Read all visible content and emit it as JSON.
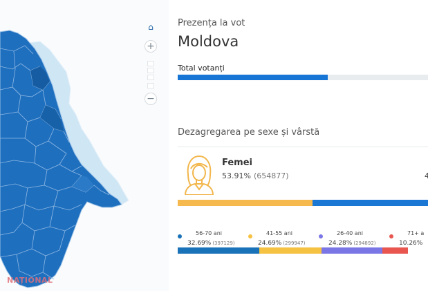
{
  "panel": {
    "section_label": "Prezența la vot",
    "country": "Moldova",
    "total_label": "Total votanți",
    "total_progress": 0.6,
    "breakdown_title": "Dezagregarea pe sexe și vârstă"
  },
  "female": {
    "label": "Femei",
    "percent": "53.91%",
    "count": "(654877)"
  },
  "male_fragment": "4",
  "gender_bar": {
    "female_share": 0.5391,
    "female_color": "#f5b94d",
    "male_color": "#1b77d4"
  },
  "age_groups": [
    {
      "label": "56-70 ani",
      "percent": "32.69%",
      "count": "(397129)",
      "share": 0.3269,
      "color": "#1a72b8"
    },
    {
      "label": "41-55 ani",
      "percent": "24.69%",
      "count": "(299947)",
      "share": 0.2469,
      "color": "#f5c242"
    },
    {
      "label": "26-40 ani",
      "percent": "24.28%",
      "count": "(294892)",
      "share": 0.2428,
      "color": "#7b76e6"
    },
    {
      "label": "71+ a",
      "percent": "10.26%",
      "count": "",
      "share": 0.1026,
      "color": "#e8564f"
    }
  ],
  "map": {
    "controls": {
      "home": "home-icon",
      "zoom_in": "+",
      "zoom_out": "−"
    },
    "fill_color": "#1f6fbf",
    "border_color": "#9cc3e6",
    "neighbor_color": "#cfe6f5"
  },
  "watermark": "NAȚIONAL"
}
